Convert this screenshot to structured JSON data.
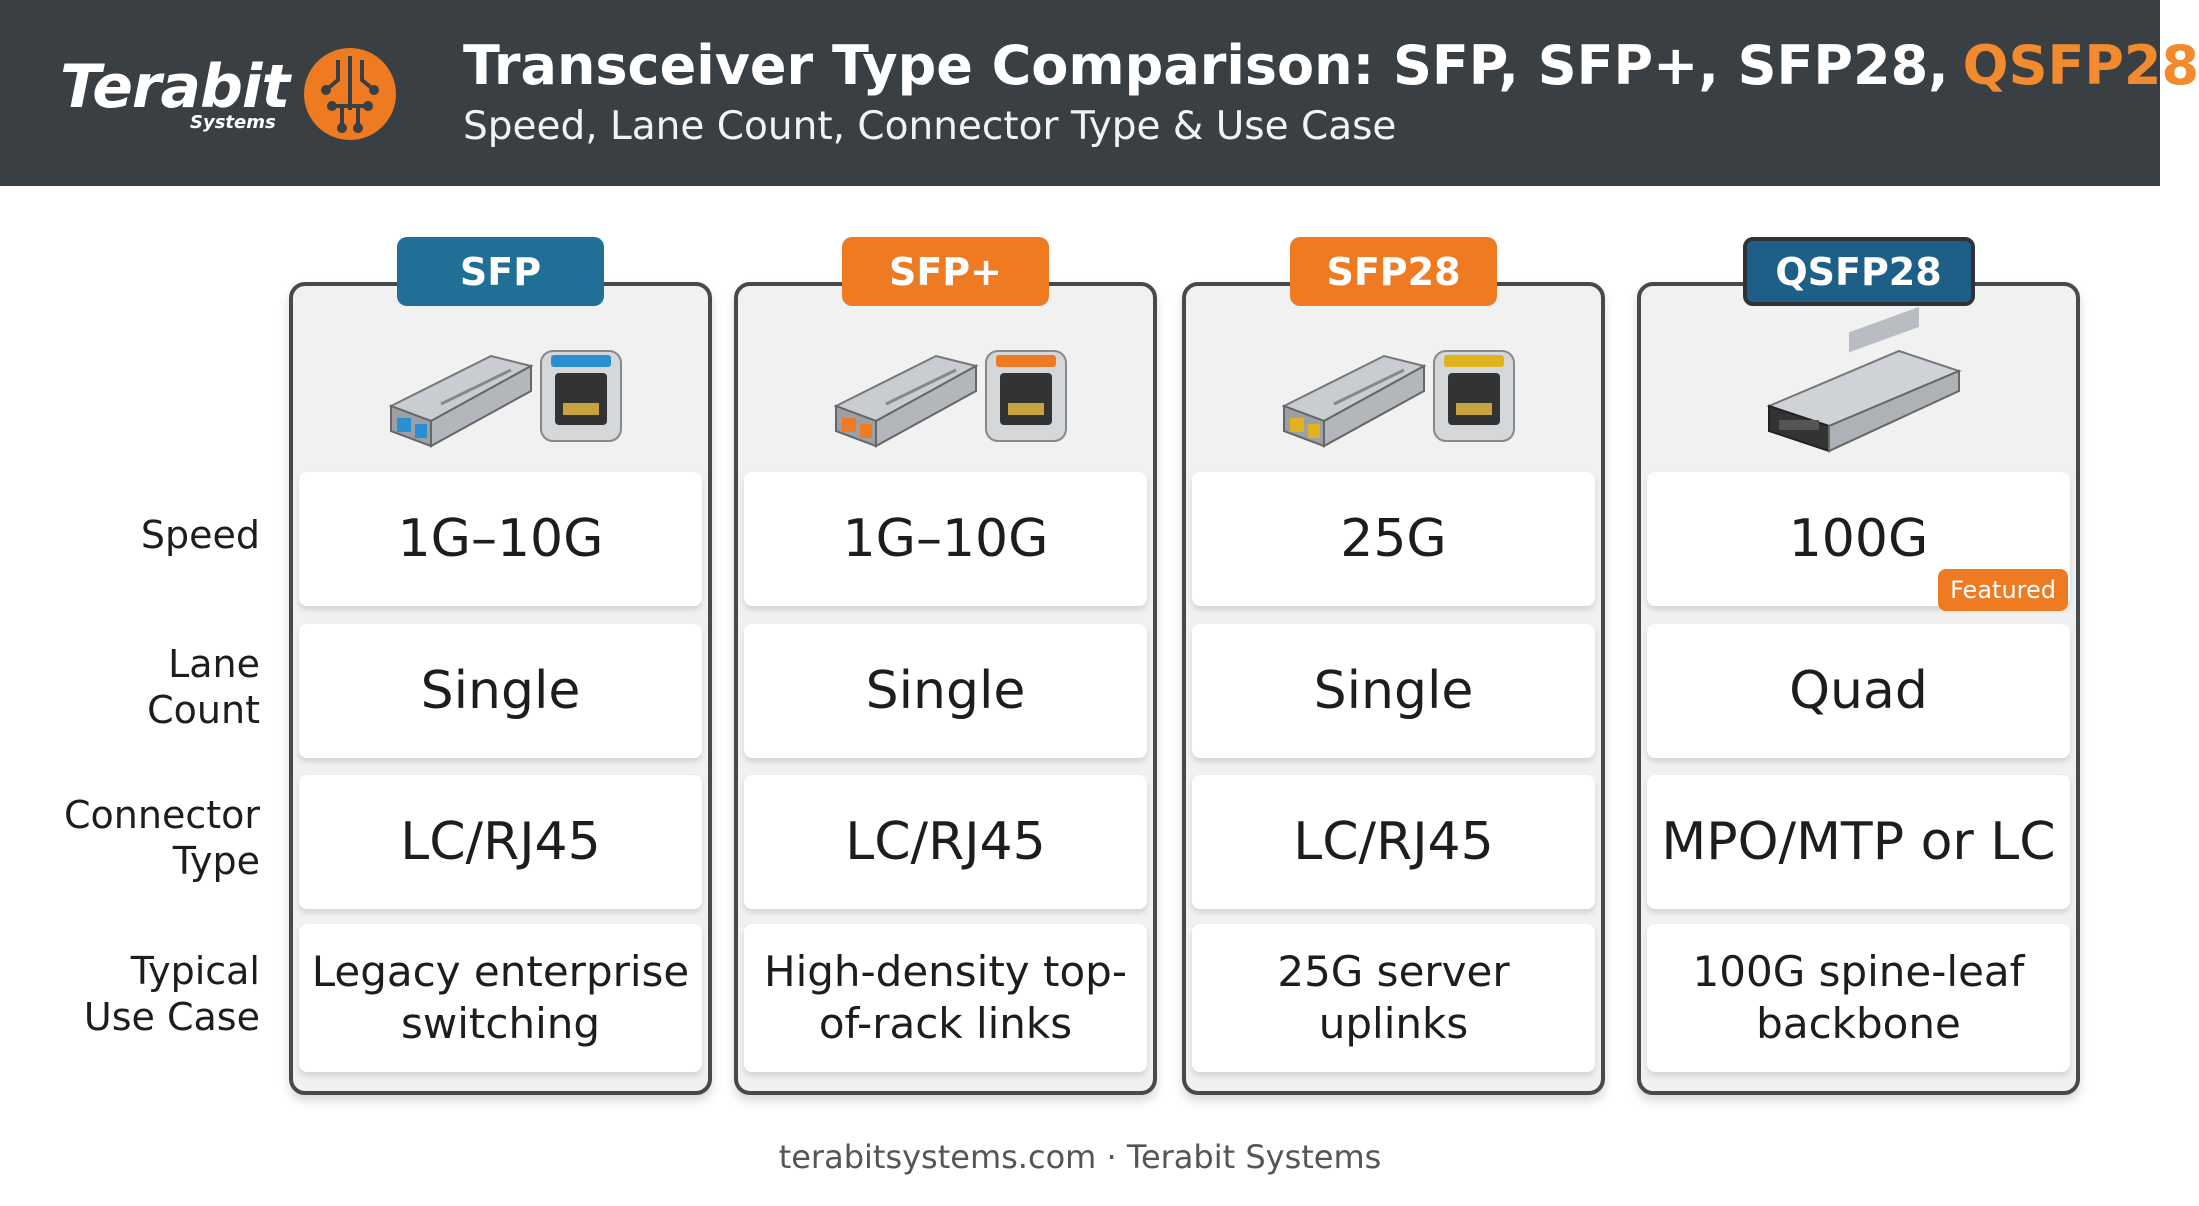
{
  "header": {
    "logo": {
      "name": "Terabit",
      "sub": "Systems"
    },
    "title": "Transceiver Type Comparison: SFP, SFP+, SFP28,",
    "title_highlight": "QSFP28",
    "subtitle": "Speed, Lane Count, Connector Type & Use Case"
  },
  "row_labels": [
    "Speed",
    "Lane Count",
    "Connector Type",
    "Typical Use Case"
  ],
  "columns": [
    {
      "name": "SFP",
      "color": "#1f6f96",
      "speed": "1G–10G",
      "lanes": "Single",
      "connector": "LC/RJ45",
      "use_case": "Legacy enterprise switching"
    },
    {
      "name": "SFP+",
      "color": "#ee7a22",
      "speed": "1G–10G",
      "lanes": "Single",
      "connector": "LC/RJ45",
      "use_case": "High-density top-of-rack links"
    },
    {
      "name": "SFP28",
      "color": "#ee7a22",
      "speed": "25G",
      "lanes": "Single",
      "connector": "LC/RJ45",
      "use_case": "25G server uplinks"
    },
    {
      "name": "QSFP28",
      "color": "#1d5f86",
      "speed": "100G",
      "lanes": "Quad",
      "connector": "MPO/MTP or LC",
      "use_case": "100G spine-leaf backbone"
    }
  ],
  "badge": "Featured",
  "footer": "terabitsystems.com · Terabit Systems"
}
